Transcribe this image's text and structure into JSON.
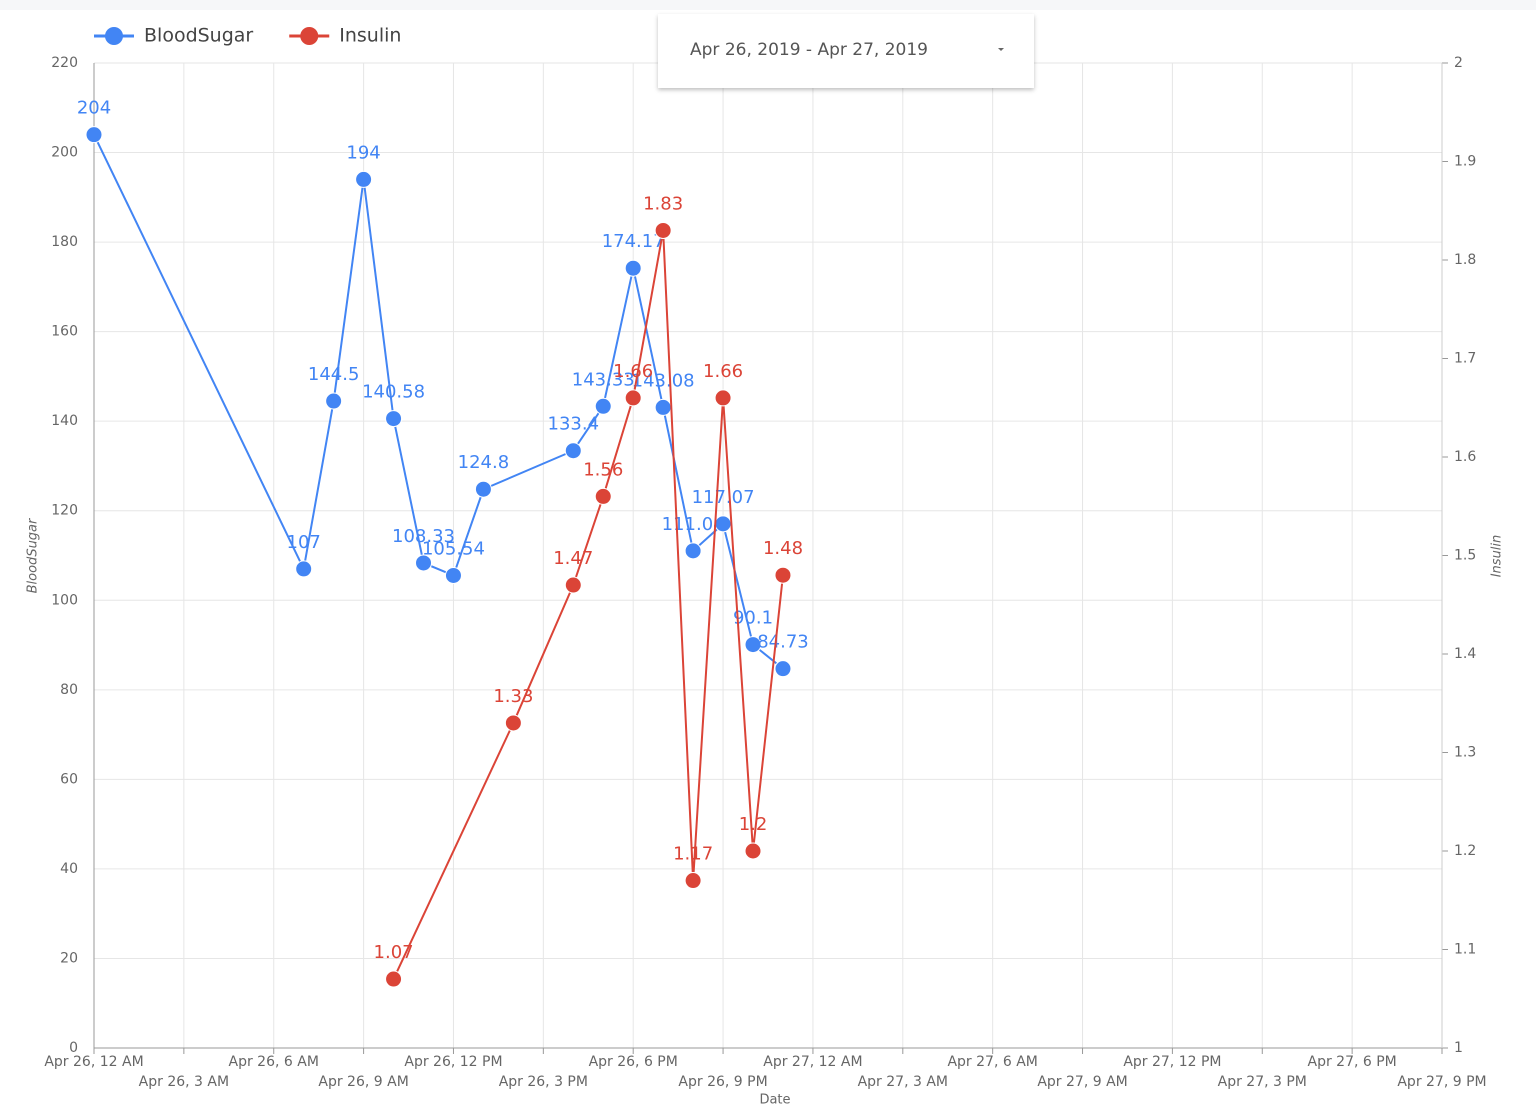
{
  "date_range": "Apr 26, 2019 - Apr 27, 2019",
  "chart_data": {
    "type": "line",
    "x_label": "Date",
    "y_label": "BloodSugar",
    "y2_label": "Insulin",
    "xlim": [
      "2019-04-26T00:00",
      "2019-04-27T21:00"
    ],
    "xticks": [
      {
        "value": "2019-04-26T00:00",
        "label": "Apr 26, 12 AM"
      },
      {
        "value": "2019-04-26T03:00",
        "label": "Apr 26, 3 AM"
      },
      {
        "value": "2019-04-26T06:00",
        "label": "Apr 26, 6 AM"
      },
      {
        "value": "2019-04-26T09:00",
        "label": "Apr 26, 9 AM"
      },
      {
        "value": "2019-04-26T12:00",
        "label": "Apr 26, 12 PM"
      },
      {
        "value": "2019-04-26T15:00",
        "label": "Apr 26, 3 PM"
      },
      {
        "value": "2019-04-26T18:00",
        "label": "Apr 26, 6 PM"
      },
      {
        "value": "2019-04-26T21:00",
        "label": "Apr 26, 9 PM"
      },
      {
        "value": "2019-04-27T00:00",
        "label": "Apr 27, 12 AM"
      },
      {
        "value": "2019-04-27T03:00",
        "label": "Apr 27, 3 AM"
      },
      {
        "value": "2019-04-27T06:00",
        "label": "Apr 27, 6 AM"
      },
      {
        "value": "2019-04-27T09:00",
        "label": "Apr 27, 9 AM"
      },
      {
        "value": "2019-04-27T12:00",
        "label": "Apr 27, 12 PM"
      },
      {
        "value": "2019-04-27T15:00",
        "label": "Apr 27, 3 PM"
      },
      {
        "value": "2019-04-27T18:00",
        "label": "Apr 27, 6 PM"
      },
      {
        "value": "2019-04-27T21:00",
        "label": "Apr 27, 9 PM"
      }
    ],
    "ylim": [
      0,
      220
    ],
    "yticks": [
      0,
      20,
      40,
      60,
      80,
      100,
      120,
      140,
      160,
      180,
      200,
      220
    ],
    "y2lim": [
      1,
      2
    ],
    "y2ticks": [
      1,
      1.1,
      1.2,
      1.3,
      1.4,
      1.5,
      1.6,
      1.7,
      1.8,
      1.9,
      2
    ],
    "grid": true,
    "legend": "top-left",
    "series": [
      {
        "name": "BloodSugar",
        "color": "#4285f4",
        "x": [
          "2019-04-26T00:00",
          "2019-04-26T07:00",
          "2019-04-26T08:00",
          "2019-04-26T09:00",
          "2019-04-26T10:00",
          "2019-04-26T11:00",
          "2019-04-26T12:00",
          "2019-04-26T13:00",
          "2019-04-26T16:00",
          "2019-04-26T17:00",
          "2019-04-26T18:00",
          "2019-04-26T19:00",
          "2019-04-26T20:00",
          "2019-04-26T21:00",
          "2019-04-26T22:00",
          "2019-04-26T23:00"
        ],
        "values": [
          204,
          107,
          144.5,
          194,
          140.58,
          108.33,
          105.54,
          124.8,
          133.4,
          143.33,
          174.17,
          143.08,
          111.04,
          117.07,
          90.1,
          84.73
        ]
      },
      {
        "name": "Insulin",
        "color": "#db4437",
        "axis": "y2",
        "x": [
          "2019-04-26T10:00",
          "2019-04-26T14:00",
          "2019-04-26T16:00",
          "2019-04-26T17:00",
          "2019-04-26T18:00",
          "2019-04-26T19:00",
          "2019-04-26T20:00",
          "2019-04-26T21:00",
          "2019-04-26T22:00",
          "2019-04-26T23:00"
        ],
        "values": [
          1.07,
          1.33,
          1.47,
          1.56,
          1.66,
          1.83,
          1.17,
          1.66,
          1.2,
          1.48
        ]
      }
    ]
  }
}
